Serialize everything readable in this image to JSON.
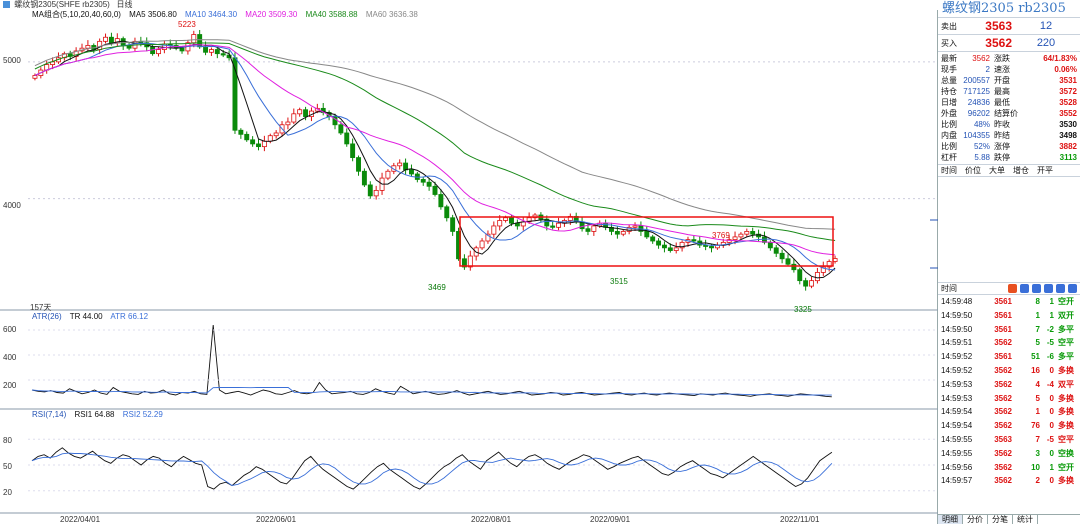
{
  "window": {
    "title": "螺纹钢2305(SHFE rb2305)",
    "period": "日线"
  },
  "main_legend": {
    "label": "MA组合(5,10,20,40,60,0)",
    "ma5": "MA5 3506.80",
    "ma10": "MA10 3464.30",
    "ma20": "MA20 3509.30",
    "ma40": "MA40 3588.88",
    "ma60": "MA60 3636.38"
  },
  "atr_legend": {
    "label": "ATR(26)",
    "tr": "TR 44.00",
    "atr": "ATR 66.12"
  },
  "rsi_legend": {
    "label": "RSI(7,14)",
    "rsi1": "RSI1 64.88",
    "rsi2": "RSI2 52.29"
  },
  "colors": {
    "up": "#dd1111",
    "down": "#0a8a0a",
    "ma5": "#111111",
    "ma10": "#3a6fd8",
    "ma20": "#e020e0",
    "ma40": "#1a8a1a",
    "ma60": "#888888",
    "highlight_box": "#ee1111"
  },
  "y_labels": {
    "main": [
      "5000",
      "4000"
    ],
    "atr": [
      "600",
      "400",
      "200"
    ],
    "rsi": [
      "80",
      "50",
      "20"
    ]
  },
  "x_labels": [
    "2022/04/01",
    "2022/06/01",
    "2022/08/01",
    "2022/09/01",
    "2022/11/01"
  ],
  "peaks": {
    "high": "5223",
    "low1": "3469",
    "low2": "3515",
    "high2": "3769",
    "low3": "3325",
    "days": "157天"
  },
  "chart_data": {
    "type": "candlestick",
    "y_range": [
      3200,
      5350
    ],
    "main_closes": [
      4900,
      4940,
      4980,
      5000,
      5030,
      5060,
      5040,
      5080,
      5100,
      5120,
      5090,
      5150,
      5180,
      5140,
      5170,
      5120,
      5100,
      5150,
      5140,
      5110,
      5060,
      5090,
      5130,
      5120,
      5100,
      5080,
      5140,
      5200,
      5110,
      5070,
      5090,
      5060,
      5050,
      5030,
      4500,
      4470,
      4430,
      4400,
      4380,
      4420,
      4460,
      4480,
      4540,
      4560,
      4620,
      4650,
      4600,
      4640,
      4660,
      4630,
      4600,
      4540,
      4480,
      4400,
      4300,
      4200,
      4100,
      4020,
      4060,
      4150,
      4200,
      4240,
      4260,
      4210,
      4180,
      4140,
      4120,
      4090,
      4030,
      3940,
      3860,
      3760,
      3560,
      3500,
      3580,
      3640,
      3690,
      3740,
      3800,
      3840,
      3860,
      3820,
      3800,
      3830,
      3860,
      3880,
      3850,
      3800,
      3790,
      3820,
      3840,
      3870,
      3830,
      3780,
      3760,
      3800,
      3820,
      3790,
      3760,
      3740,
      3760,
      3790,
      3800,
      3760,
      3720,
      3690,
      3660,
      3640,
      3620,
      3640,
      3680,
      3700,
      3690,
      3660,
      3650,
      3640,
      3660,
      3680,
      3700,
      3720,
      3740,
      3760,
      3740,
      3720,
      3680,
      3640,
      3600,
      3560,
      3520,
      3480,
      3400,
      3360,
      3400,
      3460,
      3500,
      3540,
      3562
    ],
    "atr_values": [
      120,
      110,
      105,
      115,
      100,
      95,
      130,
      110,
      90,
      100,
      120,
      95,
      85,
      140,
      110,
      100,
      90,
      85,
      110,
      95,
      100,
      120,
      90,
      80,
      100,
      95,
      110,
      90,
      85,
      640,
      120,
      90,
      100,
      110,
      95,
      80,
      100,
      120,
      110,
      90,
      85,
      100,
      115,
      95,
      90,
      100,
      180,
      120,
      90,
      95,
      100,
      110,
      90,
      85,
      100,
      130,
      110,
      95,
      85,
      150,
      120,
      90,
      100,
      110,
      95,
      85,
      90,
      100,
      115,
      95,
      80,
      90,
      100,
      110,
      95,
      85,
      90,
      100,
      110,
      95,
      80,
      85,
      90,
      100,
      95,
      80,
      85,
      95,
      100,
      90,
      80,
      85,
      90,
      95,
      100,
      85,
      80,
      90,
      95,
      85,
      80,
      90,
      95,
      90,
      85,
      80,
      75,
      90,
      85,
      80,
      90,
      95,
      85,
      80,
      75,
      70,
      80,
      85,
      90,
      80,
      75,
      70,
      80,
      90,
      85,
      80,
      75,
      70,
      66
    ],
    "rsi_values": [
      55,
      60,
      62,
      58,
      65,
      70,
      64,
      60,
      58,
      62,
      66,
      60,
      55,
      52,
      58,
      62,
      60,
      55,
      50,
      56,
      60,
      58,
      52,
      48,
      55,
      60,
      56,
      52,
      50,
      25,
      22,
      28,
      30,
      26,
      32,
      38,
      42,
      48,
      45,
      40,
      35,
      30,
      28,
      35,
      45,
      55,
      60,
      52,
      45,
      40,
      35,
      30,
      25,
      22,
      28,
      35,
      42,
      48,
      52,
      45,
      40,
      35,
      30,
      25,
      22,
      28,
      35,
      42,
      48,
      52,
      58,
      62,
      55,
      50,
      45,
      55,
      60,
      65,
      58,
      52,
      48,
      55,
      60,
      62,
      58,
      52,
      48,
      45,
      50,
      55,
      58,
      62,
      60,
      55,
      50,
      45,
      48,
      52,
      55,
      58,
      60,
      55,
      50,
      45,
      40,
      38,
      42,
      48,
      52,
      55,
      50,
      45,
      40,
      38,
      35,
      40,
      45,
      50,
      55,
      60,
      55,
      50,
      45,
      40,
      35,
      30,
      25,
      28,
      35,
      45,
      55,
      60,
      64.88
    ]
  },
  "panel": {
    "title": "螺纹钢2305 rb2305",
    "sell": {
      "label": "卖出",
      "price": "3563",
      "vol": "12"
    },
    "buy": {
      "label": "买入",
      "price": "3562",
      "vol": "220"
    },
    "stats": [
      {
        "k": "最新",
        "v": "3562",
        "k2": "涨跌",
        "v2": "64/1.83%",
        "vc": "red",
        "v2c": "red"
      },
      {
        "k": "现手",
        "v": "2",
        "k2": "速涨",
        "v2": "0.06%",
        "vc": "",
        "v2c": "red"
      },
      {
        "k": "总量",
        "v": "200557",
        "k2": "开盘",
        "v2": "3531",
        "vc": "",
        "v2c": "red"
      },
      {
        "k": "持仓",
        "v": "717125",
        "k2": "最高",
        "v2": "3572",
        "vc": "",
        "v2c": "red"
      },
      {
        "k": "日增",
        "v": "24836",
        "k2": "最低",
        "v2": "3528",
        "vc": "",
        "v2c": "red"
      },
      {
        "k": "外盘",
        "v": "96202",
        "k2": "结算价",
        "v2": "3552",
        "vc": "",
        "v2c": "red"
      },
      {
        "k": "比例",
        "v": "48%",
        "k2": "昨收",
        "v2": "3530",
        "vc": "",
        "v2c": "blk"
      },
      {
        "k": "内盘",
        "v": "104355",
        "k2": "昨结",
        "v2": "3498",
        "vc": "",
        "v2c": "blk"
      },
      {
        "k": "比例",
        "v": "52%",
        "k2": "涨停",
        "v2": "3882",
        "vc": "",
        "v2c": "red"
      },
      {
        "k": "杠杆",
        "v": "5.88",
        "k2": "跌停",
        "v2": "3113",
        "vc": "",
        "v2c": "grn"
      }
    ],
    "columns": [
      "时间",
      "价位",
      "大单",
      "增仓",
      "开平"
    ],
    "tick_header": "时间",
    "ticks": [
      {
        "t": "14:59:48",
        "p": "3561",
        "q": "8",
        "d": "1",
        "n": "空开",
        "c": "grn"
      },
      {
        "t": "14:59:50",
        "p": "3561",
        "q": "1",
        "d": "1",
        "n": "双开",
        "c": "grn"
      },
      {
        "t": "14:59:50",
        "p": "3561",
        "q": "7",
        "d": "-2",
        "n": "多平",
        "c": "grn"
      },
      {
        "t": "14:59:51",
        "p": "3562",
        "q": "5",
        "d": "-5",
        "n": "空平",
        "c": "grn"
      },
      {
        "t": "14:59:52",
        "p": "3561",
        "q": "51",
        "d": "-6",
        "n": "多平",
        "c": "grn"
      },
      {
        "t": "14:59:52",
        "p": "3562",
        "q": "16",
        "d": "0",
        "n": "多换",
        "c": "red"
      },
      {
        "t": "14:59:53",
        "p": "3562",
        "q": "4",
        "d": "-4",
        "n": "双平",
        "c": "red"
      },
      {
        "t": "14:59:53",
        "p": "3562",
        "q": "5",
        "d": "0",
        "n": "多换",
        "c": "red"
      },
      {
        "t": "14:59:54",
        "p": "3562",
        "q": "1",
        "d": "0",
        "n": "多换",
        "c": "red"
      },
      {
        "t": "14:59:54",
        "p": "3562",
        "q": "76",
        "d": "0",
        "n": "多换",
        "c": "red"
      },
      {
        "t": "14:59:55",
        "p": "3563",
        "q": "7",
        "d": "-5",
        "n": "空平",
        "c": "red"
      },
      {
        "t": "14:59:55",
        "p": "3562",
        "q": "3",
        "d": "0",
        "n": "空换",
        "c": "grn"
      },
      {
        "t": "14:59:56",
        "p": "3562",
        "q": "10",
        "d": "1",
        "n": "空开",
        "c": "grn"
      },
      {
        "t": "14:59:57",
        "p": "3562",
        "q": "2",
        "d": "0",
        "n": "多换",
        "c": "red"
      }
    ],
    "tabs": [
      "明细",
      "分价",
      "分笔",
      "统计"
    ]
  }
}
